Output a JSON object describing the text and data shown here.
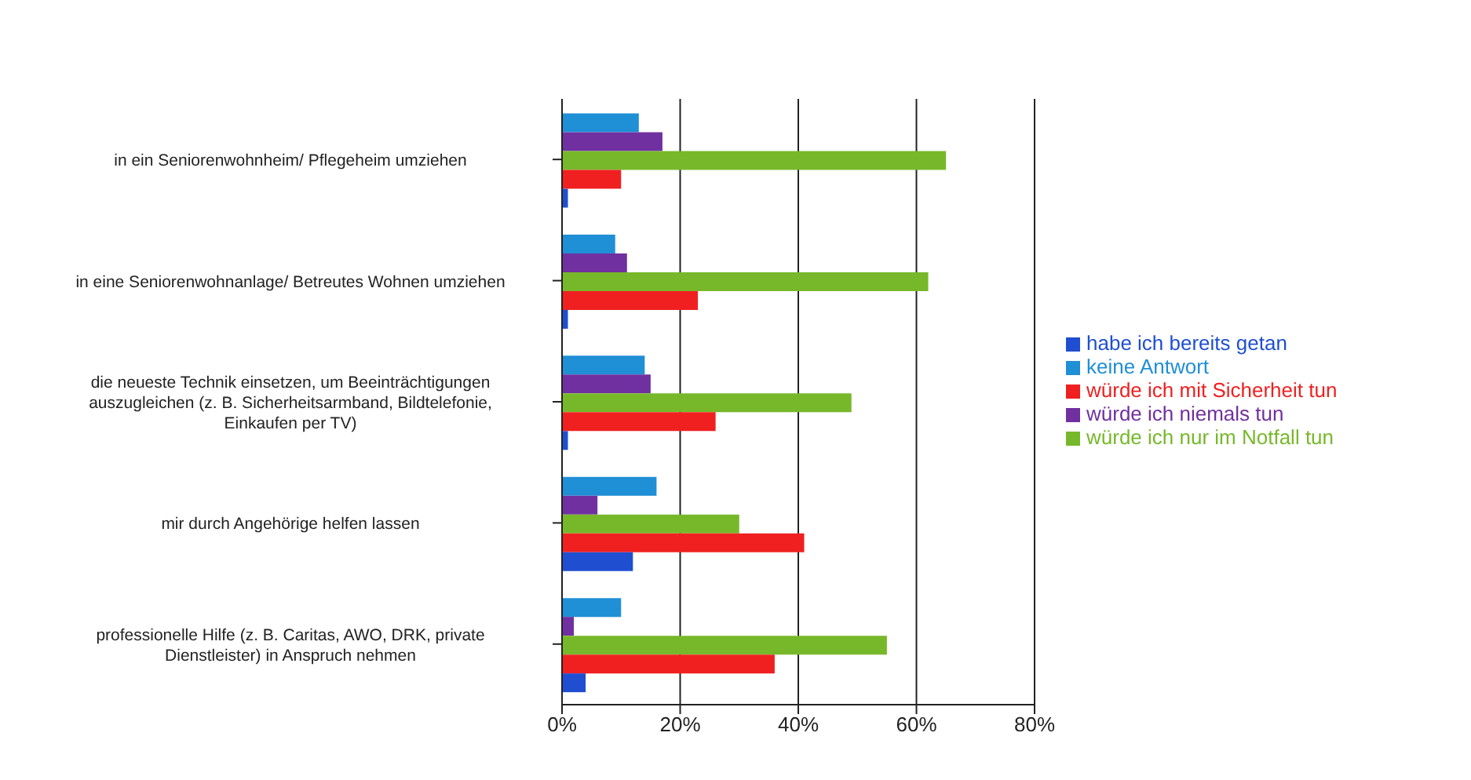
{
  "chart_data": {
    "type": "bar",
    "orientation": "horizontal",
    "categories": [
      "in ein Seniorenwohnheim/ Pflegeheim umziehen",
      "in eine Seniorenwohnanlage/ Betreutes Wohnen umziehen",
      "die neueste Technik einsetzen, um Beeinträchtigungen auszugleichen (z. B. Sicherheitsarmband, Bildtelefonie, Einkaufen per TV)",
      "mir durch Angehörige helfen lassen",
      "professionelle Hilfe (z. B. Caritas, AWO, DRK, private Dienstleister) in Anspruch nehmen"
    ],
    "series": [
      {
        "name": "keine Antwort",
        "color": "#1f8fd6",
        "values": [
          13,
          9,
          14,
          16,
          10
        ]
      },
      {
        "name": "würde ich niemals tun",
        "color": "#7030a0",
        "values": [
          17,
          11,
          15,
          6,
          2
        ]
      },
      {
        "name": "würde ich nur im Notfall tun",
        "color": "#77b82a",
        "values": [
          65,
          62,
          49,
          30,
          55
        ]
      },
      {
        "name": "würde ich mit Sicherheit tun",
        "color": "#f02020",
        "values": [
          10,
          23,
          26,
          41,
          36
        ]
      },
      {
        "name": "habe ich bereits getan",
        "color": "#1f4fd0",
        "values": [
          1,
          1,
          1,
          12,
          4
        ]
      }
    ],
    "xlim": [
      0,
      80
    ],
    "xticks": [
      {
        "value": 0,
        "label": "0%"
      },
      {
        "value": 20,
        "label": "20%"
      },
      {
        "value": 40,
        "label": "40%"
      },
      {
        "value": 60,
        "label": "60%"
      },
      {
        "value": 80,
        "label": "80%"
      }
    ],
    "grid": "x",
    "legend": "right"
  }
}
